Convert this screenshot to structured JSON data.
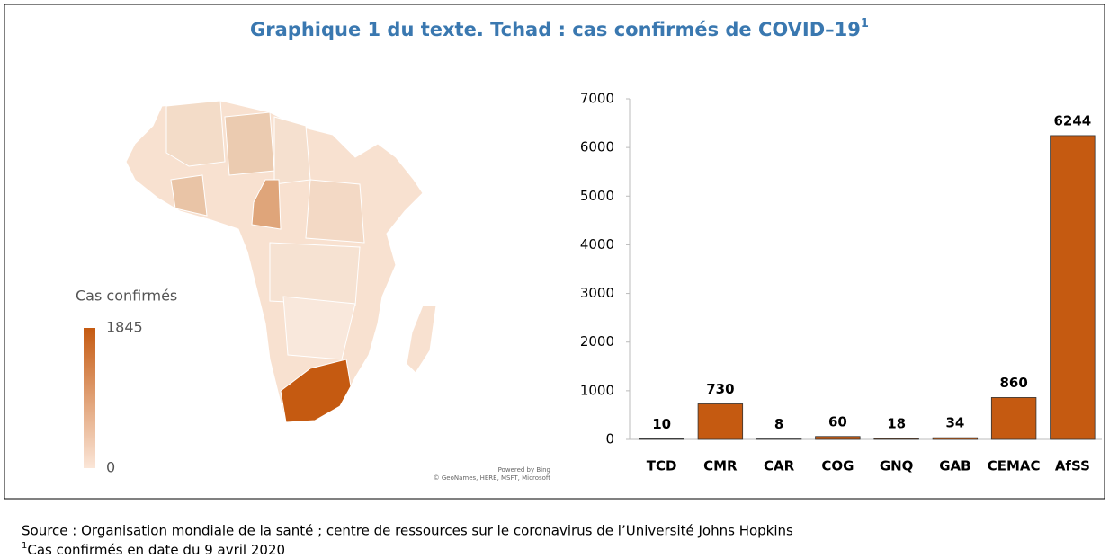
{
  "title": "Graphique 1 du texte. Tchad : cas confirmés de COVID–19",
  "title_note": "1",
  "chart_data": [
    {
      "type": "map",
      "legend_title": "Cas confirmés",
      "colorbar_lim": [
        0,
        1845
      ],
      "colors": [
        "#fbe6d8",
        "#c55a11"
      ],
      "credits": [
        "Powered by Bing",
        "© GeoNames, HERE, MSFT, Microsoft"
      ]
    },
    {
      "type": "bar",
      "categories": [
        "TCD",
        "CMR",
        "CAR",
        "COG",
        "GNQ",
        "GAB",
        "CEMAC",
        "AfSS"
      ],
      "values": [
        10,
        730,
        8,
        60,
        18,
        34,
        860,
        6244
      ],
      "color": "#c55a11",
      "ylim": [
        0,
        7000
      ],
      "yticks": [
        0,
        1000,
        2000,
        3000,
        4000,
        5000,
        6000,
        7000
      ],
      "grid": false
    }
  ],
  "source": "Source  : Organisation mondiale de la santé ; centre de ressources sur le coronavirus de l’Université Johns Hopkins",
  "footnote_mark": "1",
  "footnote": "Cas confirmés en date du 9 avril 2020"
}
